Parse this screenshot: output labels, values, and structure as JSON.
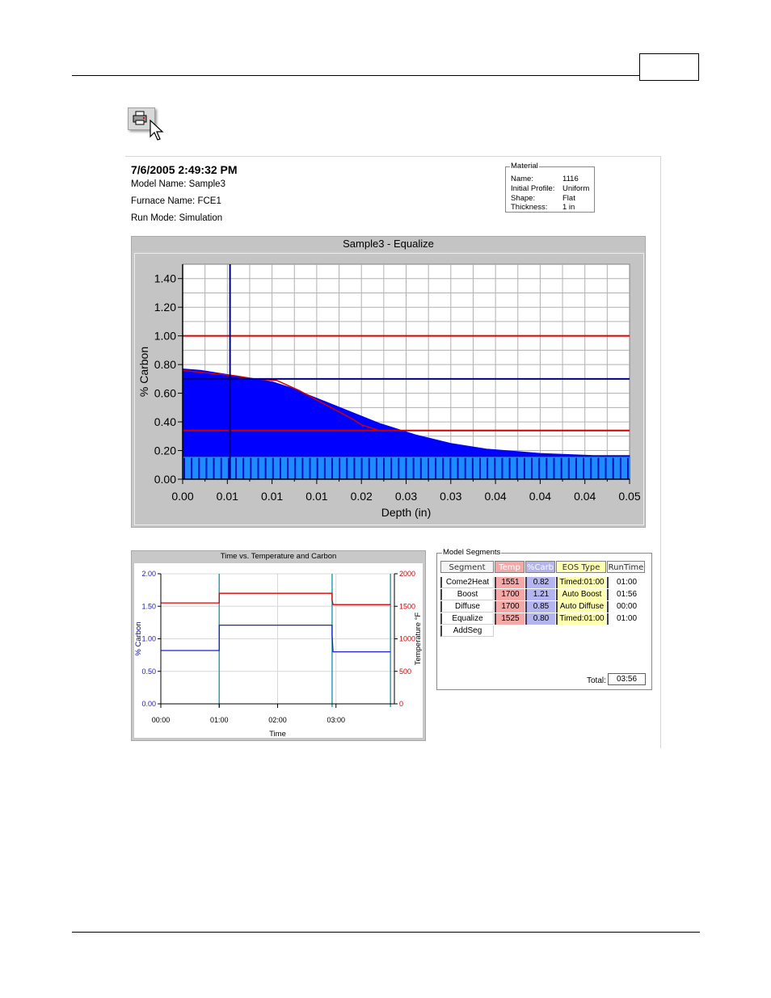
{
  "report": {
    "datetime": "7/6/2005 2:49:32 PM",
    "model_name": "Model Name: Sample3",
    "furnace_name": "Furnace Name: FCE1",
    "run_mode": "Run Mode: Simulation"
  },
  "material": {
    "title": "Material",
    "rows": [
      {
        "label": "Name:",
        "value": "1116"
      },
      {
        "label": "Initial Profile:",
        "value": "Uniform"
      },
      {
        "label": "Shape:",
        "value": "Flat"
      },
      {
        "label": "Thickness:",
        "value": "1 in"
      }
    ]
  },
  "chart_data": [
    {
      "type": "area",
      "title": "Sample3 - Equalize",
      "xlabel": "Depth (in)",
      "ylabel": "% Carbon",
      "xlim": [
        0,
        0.05
      ],
      "ylim": [
        0,
        1.5
      ],
      "grid": true,
      "x_tick_labels": [
        "0.00",
        "0.01",
        "0.01",
        "0.01",
        "0.02",
        "0.03",
        "0.03",
        "0.04",
        "0.04",
        "0.04",
        "0.05"
      ],
      "y_ticks": [
        0,
        0.2,
        0.4,
        0.6,
        0.8,
        1.0,
        1.2,
        1.4
      ],
      "y_tick_labels": [
        "0.00",
        "0.20",
        "0.40",
        "0.60",
        "0.80",
        "1.00",
        "1.20",
        "1.40"
      ],
      "base_carbon": 0.16,
      "series": [
        {
          "x": [
            0,
            0.002,
            0.004,
            0.006,
            0.008,
            0.01,
            0.012,
            0.014,
            0.016,
            0.018,
            0.02,
            0.022,
            0.024,
            0.026,
            0.028,
            0.03,
            0.032,
            0.034,
            0.036,
            0.038,
            0.04,
            0.042,
            0.044,
            0.046,
            0.048,
            0.05
          ],
          "values": [
            0.77,
            0.76,
            0.74,
            0.72,
            0.7,
            0.68,
            0.64,
            0.59,
            0.54,
            0.49,
            0.44,
            0.39,
            0.35,
            0.31,
            0.28,
            0.25,
            0.23,
            0.21,
            0.2,
            0.19,
            0.18,
            0.175,
            0.17,
            0.165,
            0.165,
            0.165
          ],
          "color": "#0000ff"
        },
        {
          "x": [
            0,
            0.003,
            0.006,
            0.008,
            0.0105,
            0.013,
            0.016,
            0.019,
            0.02,
            0.022,
            0.05
          ],
          "values": [
            0.76,
            0.74,
            0.72,
            0.7,
            0.69,
            0.62,
            0.52,
            0.42,
            0.38,
            0.34,
            0.34
          ],
          "color": "#cc0000"
        }
      ],
      "reference_lines": [
        {
          "axis": "y",
          "value": 1.0,
          "color": "#dd0000"
        },
        {
          "axis": "y",
          "value": 0.34,
          "color": "#cc0000"
        },
        {
          "axis": "y",
          "value": 0.7,
          "color": "#000080"
        },
        {
          "axis": "x",
          "value": 0.0053,
          "color": "#000080"
        }
      ]
    },
    {
      "type": "line",
      "title": "Time vs. Temperature and Carbon",
      "xlabel": "Time",
      "ylabel": "% Carbon",
      "y2label": "Temperature °F",
      "xlim": [
        0,
        240
      ],
      "ylim": [
        0,
        2.0
      ],
      "y2lim": [
        0,
        2000
      ],
      "x_ticks": [
        0,
        60,
        120,
        180
      ],
      "x_tick_labels": [
        "00:00",
        "01:00",
        "02:00",
        "03:00"
      ],
      "y_ticks": [
        0,
        0.5,
        1.0,
        1.5,
        2.0
      ],
      "y_tick_labels": [
        "0.00",
        "0.50",
        "1.00",
        "1.50",
        "2.00"
      ],
      "y2_ticks": [
        0,
        500,
        1000,
        1500,
        2000
      ],
      "y2_tick_labels": [
        "0",
        "500",
        "1000",
        "1500",
        "2000"
      ],
      "segment_bounds": [
        60,
        176,
        177,
        236
      ],
      "series": [
        {
          "axis": "y2",
          "color": "#dd0000",
          "x": [
            0,
            60,
            60,
            176,
            176,
            177,
            177,
            236
          ],
          "values": [
            1551,
            1551,
            1700,
            1700,
            1600,
            1525,
            1525,
            1525
          ]
        },
        {
          "axis": "y",
          "color": "#2020cc",
          "x": [
            0,
            60,
            60,
            176,
            176,
            177,
            177,
            236
          ],
          "values": [
            0.82,
            0.82,
            1.21,
            1.21,
            1.05,
            0.8,
            0.8,
            0.8
          ]
        }
      ]
    }
  ],
  "segments": {
    "title": "Model Segments",
    "headers": [
      "Segment",
      "Temp",
      "%Carb",
      "EOS Type",
      "RunTime"
    ],
    "rows": [
      {
        "segment": "Come2Heat",
        "temp": "1551",
        "carb": "0.82",
        "eos": "Timed:01:00",
        "runtime": "01:00"
      },
      {
        "segment": "Boost",
        "temp": "1700",
        "carb": "1.21",
        "eos": "Auto Boost",
        "runtime": "01:56"
      },
      {
        "segment": "Diffuse",
        "temp": "1700",
        "carb": "0.85",
        "eos": "Auto Diffuse",
        "runtime": "00:00"
      },
      {
        "segment": "Equalize",
        "temp": "1525",
        "carb": "0.80",
        "eos": "Timed:01:00",
        "runtime": "01:00"
      },
      {
        "segment": "AddSeg",
        "temp": "",
        "carb": "",
        "eos": "",
        "runtime": ""
      }
    ],
    "total_label": "Total:",
    "total_value": "03:56",
    "colors": {
      "temp": "#f4a8a8",
      "carb": "#b4b4f0",
      "eos": "#ffffb0",
      "runtime": "#ffffff"
    }
  },
  "icons": {
    "print": "printer-icon",
    "cursor": "cursor-arrow-icon"
  }
}
